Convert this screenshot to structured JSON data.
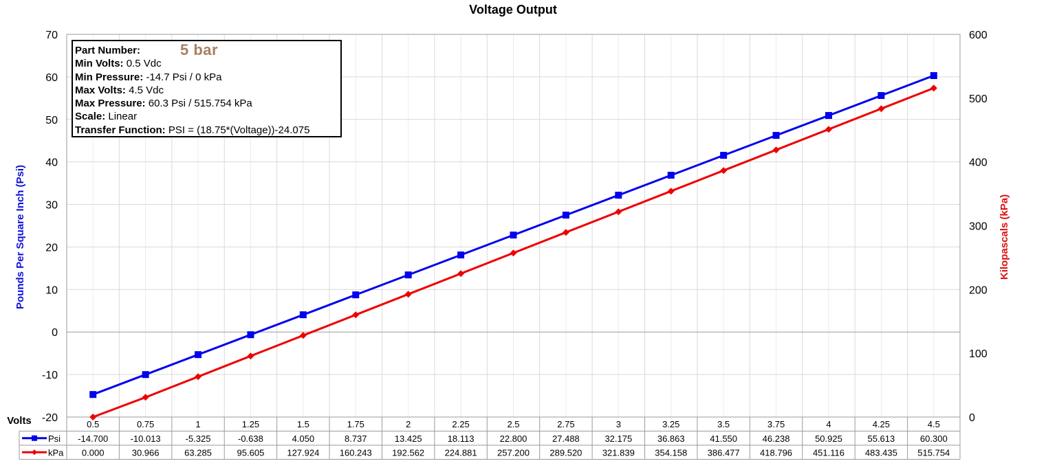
{
  "chart_data": {
    "type": "line",
    "title": "Voltage Output",
    "xlabel": "Volts",
    "ylabel": "Pounds Per Square Inch (Psi)",
    "y2label": "Kilopascals (kPa)",
    "x": [
      0.5,
      0.75,
      1,
      1.25,
      1.5,
      1.75,
      2,
      2.25,
      2.5,
      2.75,
      3,
      3.25,
      3.5,
      3.75,
      4,
      4.25,
      4.5
    ],
    "x_tick_labels": [
      "0.5",
      "0.75",
      "1",
      "1.25",
      "1.5",
      "1.75",
      "2",
      "2.25",
      "2.5",
      "2.75",
      "3",
      "3.25",
      "3.5",
      "3.75",
      "4",
      "4.25",
      "4.5"
    ],
    "ylim": [
      -20,
      70
    ],
    "y_ticks": [
      -20,
      -10,
      0,
      10,
      20,
      30,
      40,
      50,
      60,
      70
    ],
    "y2lim": [
      0,
      600
    ],
    "y2_ticks": [
      0,
      100,
      200,
      300,
      400,
      500,
      600
    ],
    "grid": true,
    "series": [
      {
        "name": "Psi",
        "axis": "left",
        "color": "#0000ee",
        "marker": "square",
        "values": [
          -14.7,
          -10.013,
          -5.325,
          -0.638,
          4.05,
          8.737,
          13.425,
          18.113,
          22.8,
          27.488,
          32.175,
          36.863,
          41.55,
          46.238,
          50.925,
          55.613,
          60.3
        ],
        "labels": [
          "-14.700",
          "-10.013",
          "-5.325",
          "-0.638",
          "4.050",
          "8.737",
          "13.425",
          "18.113",
          "22.800",
          "27.488",
          "32.175",
          "36.863",
          "41.550",
          "46.238",
          "50.925",
          "55.613",
          "60.300"
        ]
      },
      {
        "name": "kPa",
        "axis": "right",
        "color": "#ee0000",
        "marker": "diamond",
        "values": [
          0,
          30.966,
          63.285,
          95.605,
          127.924,
          160.243,
          192.562,
          224.881,
          257.2,
          289.52,
          321.839,
          354.158,
          386.477,
          418.796,
          451.116,
          483.435,
          515.754
        ],
        "labels": [
          "0.000",
          "30.966",
          "63.285",
          "95.605",
          "127.924",
          "160.243",
          "192.562",
          "224.881",
          "257.200",
          "289.520",
          "321.839",
          "354.158",
          "386.477",
          "418.796",
          "451.116",
          "483.435",
          "515.754"
        ]
      }
    ]
  },
  "info": {
    "part_number_label": "Part Number:",
    "part_number_value": "5 bar",
    "min_volts_label": "Min Volts:",
    "min_volts_value": "0.5 Vdc",
    "min_pressure_label": "Min Pressure:",
    "min_pressure_value": "-14.7 Psi / 0 kPa",
    "max_volts_label": "Max Volts:",
    "max_volts_value": "4.5 Vdc",
    "max_pressure_label": "Max Pressure:",
    "max_pressure_value": "60.3 Psi / 515.754 kPa",
    "scale_label": "Scale:",
    "scale_value": "Linear",
    "transfer_label": "Transfer Function:",
    "transfer_value": "PSI = (18.75*(Voltage))-24.075"
  }
}
